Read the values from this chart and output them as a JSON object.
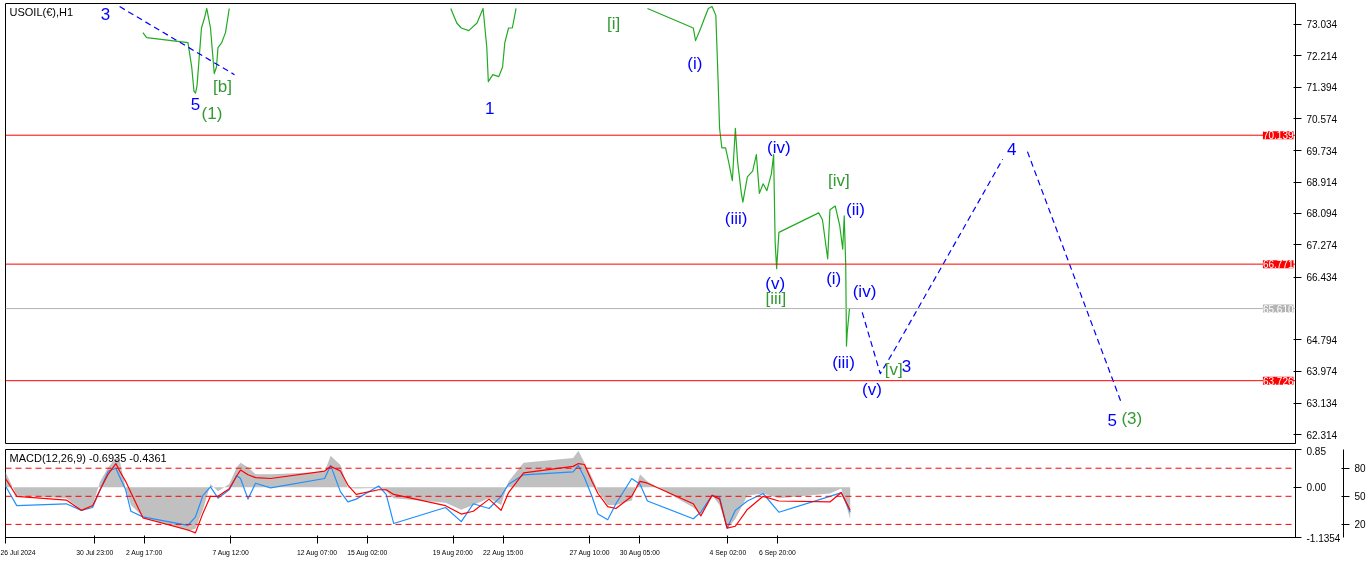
{
  "chart_data": [
    {
      "type": "line",
      "title": "USOIL(€),H1",
      "xlim": [
        "2024-07-26T00:00",
        "2024-10-05T14:00"
      ],
      "ylim": [
        62.085,
        73.58
      ],
      "yticks": [
        73.034,
        72.214,
        71.394,
        70.574,
        69.734,
        68.914,
        68.094,
        67.274,
        66.434,
        64.794,
        63.974,
        63.134,
        62.314
      ],
      "tick_labels": "y",
      "series": [
        {
          "color": "#22aa22",
          "line_style": "solid",
          "x": [
            "2024-08-02T15:00",
            "2024-08-02T20:00",
            "2024-08-05T03:00",
            "2024-08-05T08:00",
            "2024-08-05T11:00",
            "2024-08-05T13:00",
            "2024-08-05T15:00",
            "2024-08-05T18:00",
            "2024-08-05T21:00",
            "2024-08-06T01:00",
            "2024-08-06T04:00",
            "2024-08-06T09:00",
            "2024-08-06T14:00",
            "2024-08-06T17:00",
            "2024-08-06T19:00",
            "2024-08-07T00:00",
            "2024-08-07T05:00",
            "2024-08-07T10:00"
          ],
          "values": [
            72.82,
            72.69,
            72.56,
            71.92,
            71.29,
            71.24,
            71.42,
            72.18,
            72.94,
            73.2,
            73.45,
            72.94,
            71.75,
            71.92,
            72.43,
            72.56,
            72.82,
            73.45
          ]
        },
        {
          "color": "#22aa22",
          "line_style": "solid",
          "x": [
            "2024-08-19T17:00",
            "2024-08-20T01:00",
            "2024-08-20T07:00",
            "2024-08-20T17:00",
            "2024-08-21T04:00",
            "2024-08-21T12:00",
            "2024-08-21T17:00",
            "2024-08-21T19:00",
            "2024-08-22T01:00",
            "2024-08-22T09:00",
            "2024-08-22T14:00",
            "2024-08-22T17:00",
            "2024-08-22T22:00",
            "2024-08-23T03:00",
            "2024-08-23T08:00"
          ],
          "values": [
            73.45,
            73.07,
            72.94,
            72.87,
            73.07,
            73.45,
            72.43,
            71.54,
            71.72,
            71.67,
            71.92,
            72.56,
            72.94,
            72.94,
            73.45
          ]
        },
        {
          "color": "#22aa22",
          "line_style": "solid",
          "x": [
            "2024-08-30T15:00",
            "2024-09-02T04:00",
            "2024-09-02T07:00",
            "2024-09-02T14:00",
            "2024-09-02T19:00",
            "2024-09-03T00:00",
            "2024-09-03T05:00",
            "2024-09-03T10:00",
            "2024-09-03T13:00",
            "2024-09-03T15:00",
            "2024-09-03T18:00",
            "2024-09-03T23:00",
            "2024-09-04T03:00",
            "2024-09-04T08:00",
            "2024-09-04T12:00",
            "2024-09-04T15:00",
            "2024-09-04T20:00",
            "2024-09-04T22:00",
            "2024-09-05T04:00",
            "2024-09-05T11:00",
            "2024-09-05T16:00",
            "2024-09-05T20:00",
            "2024-09-06T01:00",
            "2024-09-06T06:00",
            "2024-09-06T12:00",
            "2024-09-06T15:00",
            "2024-09-06T17:00",
            "2024-09-06T19:00",
            "2024-09-06T22:00",
            "2024-09-09T03:00",
            "2024-09-09T08:00",
            "2024-09-09T15:00",
            "2024-09-09T18:00",
            "2024-09-10T01:00",
            "2024-09-10T07:00",
            "2024-09-10T11:00",
            "2024-09-10T13:00",
            "2024-09-10T15:00",
            "2024-09-10T16:00",
            "2024-09-10T17:00",
            "2024-09-10T20:00"
          ],
          "values": [
            73.45,
            72.94,
            72.61,
            72.94,
            73.2,
            73.45,
            73.5,
            73.27,
            71.59,
            70.32,
            69.81,
            69.81,
            69.45,
            68.95,
            70.32,
            69.45,
            68.62,
            68.39,
            69.05,
            69.2,
            69.63,
            68.62,
            68.87,
            68.69,
            69.13,
            69.63,
            67.34,
            66.65,
            67.6,
            68.11,
            67.93,
            66.91,
            68.19,
            68.29,
            67.78,
            67.16,
            68.03,
            66.76,
            64.63,
            64.98,
            65.61
          ]
        },
        {
          "color": "#0000ff",
          "line_style": "dashed",
          "x": [
            "2024-08-01T08:00",
            "2024-08-07T17:00"
          ],
          "values": [
            73.5,
            71.72
          ]
        },
        {
          "color": "#0000ff",
          "line_style": "dashed",
          "x": [
            "2024-09-11T13:00",
            "2024-09-12T13:00",
            "2024-09-13T07:00",
            "2024-09-19T08:00"
          ],
          "values": [
            65.51,
            63.91,
            64.5,
            69.51
          ]
        },
        {
          "color": "#0000ff",
          "line_style": "dashed",
          "x": [
            "2024-09-20T17:00",
            "2024-09-25T22:00"
          ],
          "values": [
            69.71,
            63.15
          ]
        }
      ],
      "ref_lines": [
        {
          "axis": "y",
          "value": 70.139,
          "label": "70.139",
          "color": "#ff0000",
          "line_style": "solid"
        },
        {
          "axis": "y",
          "value": 66.771,
          "label": "66.771",
          "color": "#ff0000",
          "line_style": "solid"
        },
        {
          "axis": "y",
          "value": 65.61,
          "label": "65.610",
          "color": "#b4b4b4",
          "line_style": "solid"
        },
        {
          "axis": "y",
          "value": 63.726,
          "label": "63.726",
          "color": "#ff0000",
          "line_style": "solid"
        }
      ],
      "annotations": [
        "3",
        "5",
        "[b]",
        "(1)",
        "1",
        "[i]",
        "(i)",
        "(iv)",
        "[iv]",
        "(ii)",
        "(iii)",
        "(i)",
        "(v)",
        "[iii]",
        "(iv)",
        "(iii)",
        "(v)",
        "[v]",
        "3",
        "4",
        "5",
        "(3)"
      ]
    },
    {
      "type": "line",
      "title": "MACD(12,26,9) -0.6935 -0.4361",
      "xlim": [
        "2024-07-26T00:00",
        "2024-10-05T14:00"
      ],
      "ylim": [
        -1.1354,
        0.85
      ],
      "y2lim": [
        6,
        100
      ],
      "xticks": [
        {
          "value": "2024-07-26T00:00",
          "label": "26 Jul 2024"
        },
        {
          "value": "2024-07-30T23:00",
          "label": "30 Jul 23:00"
        },
        {
          "value": "2024-08-02T17:00",
          "label": "2 Aug 17:00"
        },
        {
          "value": "2024-08-07T12:00",
          "label": "7 Aug 12:00"
        },
        {
          "value": "2024-08-12T07:00",
          "label": "12 Aug 07:00"
        },
        {
          "value": "2024-08-15T02:00",
          "label": "15 Aug 02:00"
        },
        {
          "value": "2024-08-19T20:00",
          "label": "19 Aug 20:00"
        },
        {
          "value": "2024-08-22T15:00",
          "label": "22 Aug 15:00"
        },
        {
          "value": "2024-08-27T10:00",
          "label": "27 Aug 10:00"
        },
        {
          "value": "2024-08-30T05:00",
          "label": "30 Aug 05:00"
        },
        {
          "value": "2024-09-04T02:00",
          "label": "4 Sep 02:00"
        },
        {
          "value": "2024-09-06T20:00",
          "label": "6 Sep 20:00"
        }
      ],
      "yticks": [
        0.85,
        {
          "value": 0,
          "label": "0.00"
        },
        {
          "value": -1.1354,
          "label": "-1.1354"
        }
      ],
      "y2ticks": [
        80,
        50,
        20
      ],
      "x": [
        "2024-07-26T00:00",
        "2024-07-26T15:00",
        "2024-07-29T09:00",
        "2024-07-30T05:00",
        "2024-07-30T20:00",
        "2024-07-31T06:00",
        "2024-07-31T17:00",
        "2024-08-01T03:00",
        "2024-08-01T08:00",
        "2024-08-01T16:00",
        "2024-08-01T23:00",
        "2024-08-02T15:00",
        "2024-08-05T03:00",
        "2024-08-05T13:00",
        "2024-08-05T23:00",
        "2024-08-06T09:00",
        "2024-08-06T19:00",
        "2024-08-07T10:00",
        "2024-08-07T20:00",
        "2024-08-08T01:00",
        "2024-08-08T11:00",
        "2024-08-08T21:00",
        "2024-08-09T17:00",
        "2024-08-12T17:00",
        "2024-08-13T01:00",
        "2024-08-13T14:00",
        "2024-08-14T00:00",
        "2024-08-14T11:00",
        "2024-08-15T17:00",
        "2024-08-16T03:00",
        "2024-08-16T13:00",
        "2024-08-19T10:00",
        "2024-08-20T07:00",
        "2024-08-20T23:00",
        "2024-08-21T20:00",
        "2024-08-22T12:00",
        "2024-08-22T22:00",
        "2024-08-23T18:00",
        "2024-08-26T12:00",
        "2024-08-26T19:00",
        "2024-08-27T03:00",
        "2024-08-27T13:00",
        "2024-08-27T21:00",
        "2024-08-28T10:00",
        "2024-08-28T21:00",
        "2024-08-29T18:00",
        "2024-08-30T05:00",
        "2024-08-30T15:00",
        "2024-09-02T04:00",
        "2024-09-02T14:00",
        "2024-09-03T05:00",
        "2024-09-03T15:00",
        "2024-09-04T01:00",
        "2024-09-04T12:00",
        "2024-09-05T04:00",
        "2024-09-06T01:00",
        "2024-09-06T22:00",
        "2024-09-09T18:00",
        "2024-09-10T09:00",
        "2024-09-10T21:00"
      ],
      "series": [
        {
          "type": "area",
          "axis": "y",
          "color": "#c0c0c0",
          "values": [
            0.34,
            -0.19,
            -0.25,
            -0.51,
            -0.4,
            0.13,
            0.45,
            0.66,
            0.61,
            -0.02,
            -0.4,
            -0.67,
            -0.99,
            -0.94,
            -0.51,
            0.07,
            -0.09,
            0.07,
            0.45,
            0.55,
            0.45,
            0.29,
            0.29,
            0.34,
            0.71,
            0.5,
            -0.02,
            -0.03,
            -0.02,
            -0.09,
            -0.25,
            -0.35,
            -0.51,
            -0.4,
            -0.25,
            -0.4,
            0.13,
            0.55,
            0.66,
            0.82,
            0.55,
            0.23,
            -0.09,
            -0.4,
            -0.4,
            -0.3,
            0.29,
            0.13,
            -0.46,
            -0.62,
            -0.19,
            -0.4,
            -0.94,
            -0.72,
            -0.19,
            -0.14,
            -0.25,
            -0.14,
            -0.03,
            -0.72
          ]
        },
        {
          "type": "line",
          "axis": "y2",
          "color": "#1e90ff",
          "line_style": "solid",
          "values": [
            61,
            40,
            42,
            35,
            38,
            57,
            77,
            80,
            71,
            57,
            34,
            28,
            19,
            28,
            51,
            60,
            48,
            57,
            72,
            69,
            47,
            64,
            59,
            69,
            83,
            55,
            44,
            47,
            61,
            52,
            21,
            38,
            23,
            42,
            37,
            50,
            63,
            73,
            76,
            83,
            70,
            50,
            31,
            25,
            42,
            69,
            63,
            45,
            26,
            33,
            51,
            49,
            16,
            35,
            45,
            53,
            33,
            50,
            54,
            33
          ]
        },
        {
          "type": "line",
          "axis": "y2",
          "color": "#ff0000",
          "line_style": "solid",
          "values": [
            69,
            50,
            46,
            35,
            40,
            57,
            74,
            85,
            77,
            66,
            54,
            27,
            14,
            11,
            32,
            50,
            50,
            58,
            72,
            78,
            73,
            70,
            69,
            77,
            82,
            77,
            62,
            52,
            57,
            57,
            52,
            40,
            31,
            34,
            47,
            35,
            54,
            75,
            82,
            85,
            84,
            66,
            53,
            39,
            37,
            50,
            66,
            64,
            42,
            29,
            51,
            47,
            16,
            18,
            36,
            50,
            45,
            44,
            54,
            35
          ]
        }
      ],
      "ref_lines": [
        {
          "axis": "y2",
          "value": 80,
          "color": "#ff0000",
          "line_style": "dashed"
        },
        {
          "axis": "y2",
          "value": 50,
          "color": "#ff0000",
          "line_style": "dashed"
        },
        {
          "axis": "y2",
          "value": 20,
          "color": "#ff0000",
          "line_style": "dashed"
        }
      ]
    }
  ]
}
